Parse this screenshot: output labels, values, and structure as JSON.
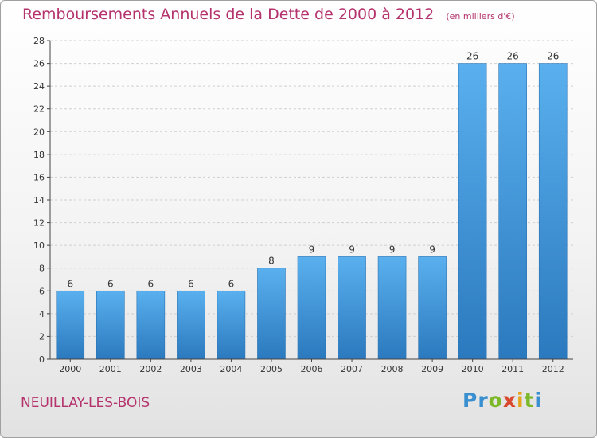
{
  "chart_data": {
    "type": "bar",
    "title": "Remboursements Annuels de la Dette de 2000 à 2012",
    "subtitle": "(en milliers d'€)",
    "categories": [
      "2000",
      "2001",
      "2002",
      "2003",
      "2004",
      "2005",
      "2006",
      "2007",
      "2008",
      "2009",
      "2010",
      "2011",
      "2012"
    ],
    "values": [
      6,
      6,
      6,
      6,
      6,
      8,
      9,
      9,
      9,
      9,
      26,
      26,
      26
    ],
    "ylim": [
      0,
      28
    ],
    "yticks": [
      0,
      2,
      4,
      6,
      8,
      10,
      12,
      14,
      16,
      18,
      20,
      22,
      24,
      26,
      28
    ],
    "grid": true,
    "bar_color": "#3f93d8",
    "title_color": "#b5336d"
  },
  "footer": {
    "commune": "NEUILLAY-LES-BOIS",
    "logo_letters": [
      "P",
      "r",
      "o",
      "x",
      "i",
      "t",
      "i"
    ],
    "logo_colors": [
      "#3a8fd0",
      "#3a8fd0",
      "#7cb828",
      "#d9492f",
      "#e5a51a",
      "#7cb828",
      "#3a8fd0"
    ]
  }
}
